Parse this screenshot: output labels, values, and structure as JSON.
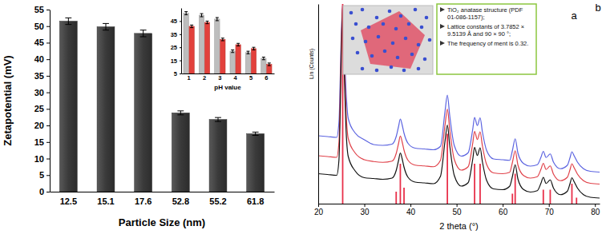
{
  "chart_data": [
    {
      "type": "bar",
      "x_label": "Particle Size (nm)",
      "y_label": "Zetapotential (mV)",
      "categories": [
        "12.5",
        "15.1",
        "17.6",
        "52.8",
        "55.2",
        "61.8"
      ],
      "values": [
        51.5,
        49.8,
        47.8,
        23.8,
        21.8,
        17.5
      ],
      "errors": [
        1.0,
        1.0,
        1.0,
        0.6,
        0.6,
        0.5
      ],
      "color": "#3a3a3a",
      "ylim": [
        0,
        55
      ],
      "yticks": [
        0,
        5,
        10,
        15,
        20,
        25,
        30,
        35,
        40,
        45,
        50,
        55
      ]
    },
    {
      "type": "bar",
      "x_label": "pH value",
      "categories": [
        "1",
        "2",
        "3",
        "4",
        "5",
        "6"
      ],
      "series": [
        {
          "color": "#bdbdbd",
          "values": [
            51,
            49.5,
            46.5,
            22,
            21,
            16.5
          ],
          "errors": [
            1.2,
            1.2,
            1.2,
            1,
            1,
            1
          ]
        },
        {
          "color": "#e2413c",
          "values": [
            41,
            44,
            31,
            27,
            24,
            12
          ],
          "errors": [
            1,
            1,
            1,
            1,
            1,
            1
          ]
        }
      ],
      "ylim": [
        5,
        55
      ],
      "yticks": [
        5,
        15,
        25,
        35,
        45
      ]
    },
    {
      "type": "line",
      "x_label": "2 theta (°)",
      "y_label": "Lin (Counts)",
      "x": [
        20,
        22,
        24,
        24.5,
        25,
        25.3,
        25.6,
        26,
        26.5,
        28,
        30,
        32,
        34,
        36,
        36.9,
        37.4,
        37.8,
        38.2,
        38.6,
        39.5,
        41,
        43,
        45,
        46.5,
        47.5,
        48,
        48.5,
        49.5,
        51,
        52.5,
        53.5,
        53.9,
        54.5,
        55.1,
        55.6,
        56.5,
        58,
        60,
        61.5,
        62.1,
        62.7,
        63.3,
        64.5,
        66,
        67.5,
        68.3,
        68.8,
        69.4,
        70.3,
        71,
        72.5,
        74,
        74.6,
        75,
        75.5,
        76.2,
        77.5,
        79,
        81
      ],
      "series": [
        {
          "color": "#5b63e0",
          "values": [
            34,
            33.6,
            33.2,
            41.1,
            84,
            100,
            80,
            57.8,
            42.7,
            35.4,
            32,
            29.6,
            29.2,
            29.8,
            33.6,
            38.5,
            42.4,
            39.4,
            35.3,
            30.1,
            27.8,
            27.4,
            27,
            28.7,
            46.5,
            54.4,
            44.3,
            29.1,
            23.8,
            25.5,
            37.3,
            43.2,
            39.1,
            43,
            35.9,
            26.7,
            22.4,
            22,
            21.7,
            26.6,
            32.5,
            25.3,
            20.1,
            18.8,
            19.5,
            23.3,
            26.2,
            23.1,
            24.9,
            20.8,
            17.5,
            19.2,
            23.1,
            26,
            23.9,
            20.8,
            17.5,
            16.2,
            15.8
          ]
        },
        {
          "color": "#e0424a",
          "values": [
            24,
            23.6,
            23.2,
            31.1,
            80,
            100,
            74,
            47.8,
            32.7,
            25.4,
            22,
            21.1,
            20.7,
            21.3,
            25.1,
            30,
            33.9,
            30.9,
            26.8,
            21.6,
            19.3,
            18.9,
            18.5,
            21.7,
            39.5,
            47.4,
            37.3,
            22.1,
            16.8,
            18.5,
            30.3,
            36.2,
            32.1,
            36,
            28.9,
            19.7,
            15.4,
            15,
            15.7,
            20.6,
            26.5,
            19.3,
            14.1,
            12.8,
            13.5,
            17.3,
            20.2,
            17.1,
            18.9,
            14.8,
            11.5,
            13.2,
            17.1,
            20,
            17.9,
            14.8,
            11.5,
            10.2,
            9.8
          ]
        },
        {
          "color": "#111111",
          "values": [
            15,
            14.6,
            14.2,
            22.1,
            74,
            99,
            68.9,
            38.8,
            23.7,
            16.4,
            13,
            12.6,
            12.2,
            12.8,
            16.6,
            21.5,
            25.4,
            22.4,
            18.3,
            13.1,
            10.8,
            10.4,
            10,
            13.7,
            31.5,
            39.4,
            29.3,
            14.1,
            8.8,
            10.5,
            22.3,
            28.2,
            24.1,
            28,
            20.9,
            11.7,
            7.4,
            7,
            8.7,
            13.6,
            19.5,
            12.3,
            7.1,
            5.8,
            6.5,
            10.3,
            13.2,
            10.1,
            11.9,
            7.8,
            4.5,
            6.2,
            10.1,
            13,
            10.9,
            7.8,
            4.5,
            3.2,
            2.8
          ]
        },
        {
          "type": "stem",
          "color": "#e8304a",
          "x": [
            25.3,
            36.9,
            37.8,
            38.6,
            48.0,
            53.9,
            55.1,
            62.1,
            62.7,
            68.8,
            70.3,
            75.0,
            76.0
          ],
          "values": [
            100,
            6,
            20,
            8,
            35,
            20,
            20,
            5,
            15,
            7,
            7,
            10,
            3
          ]
        }
      ],
      "xlim": [
        20,
        81
      ],
      "ylim": [
        0,
        100
      ],
      "xticks": [
        20,
        30,
        40,
        50,
        60,
        70,
        80
      ],
      "tick_labels": "x",
      "annotations": [
        "a",
        "b"
      ],
      "text_box": [
        "TiO₂ anatase structure (PDF 01-086-1157);",
        "Lattice constants of 3.7852 × 9.5139 Å and 90 × 90 °;",
        "The frequency of ment is 0.32."
      ]
    }
  ]
}
